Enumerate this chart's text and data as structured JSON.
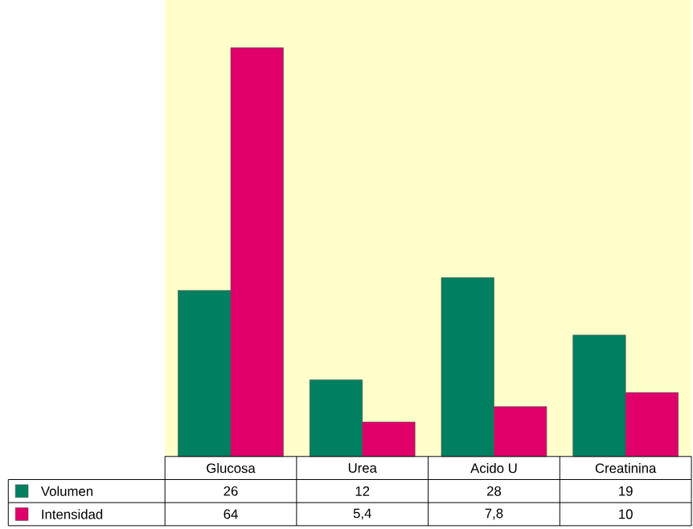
{
  "chart_data": {
    "type": "bar",
    "categories": [
      "Glucosa",
      "Urea",
      "Acido U",
      "Creatinina"
    ],
    "series": [
      {
        "name": "Volumen",
        "color": "#008060",
        "values": [
          26,
          12,
          28,
          19
        ],
        "value_labels": [
          "26",
          "12",
          "28",
          "19"
        ]
      },
      {
        "name": "Intensidad",
        "color": "#e0006a",
        "values": [
          64,
          5.4,
          7.8,
          10
        ],
        "value_labels": [
          "64",
          "5,4",
          "7,8",
          "10"
        ]
      }
    ],
    "legend": "bottom left"
  }
}
